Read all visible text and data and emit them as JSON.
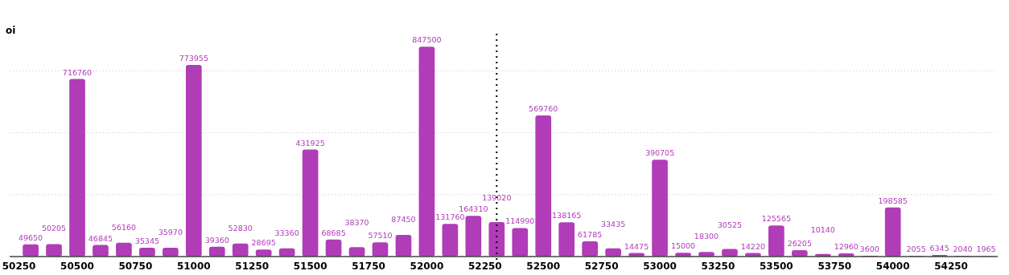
{
  "chart_data": {
    "type": "bar",
    "ylabel": "oi",
    "x": [
      50300,
      50400,
      50500,
      50600,
      50700,
      50800,
      50900,
      51000,
      51100,
      51200,
      51300,
      51400,
      51500,
      51600,
      51700,
      51800,
      51900,
      52000,
      52100,
      52200,
      52300,
      52400,
      52500,
      52600,
      52700,
      52800,
      52900,
      53000,
      53100,
      53200,
      53300,
      53400,
      53500,
      53600,
      53700,
      53800,
      53900,
      54000,
      54100,
      54200,
      54300,
      54400
    ],
    "values": [
      49650,
      50205,
      716760,
      46845,
      56160,
      35345,
      35970,
      773955,
      39360,
      52830,
      28695,
      33360,
      431925,
      68685,
      38370,
      57510,
      87450,
      847500,
      131760,
      164310,
      139020,
      114990,
      569760,
      138165,
      61785,
      33435,
      14475,
      390705,
      15000,
      18300,
      30525,
      14220,
      125565,
      26205,
      10140,
      12960,
      3600,
      198585,
      2055,
      6345,
      2040,
      1965
    ],
    "color": "#b03cb8",
    "data_labels": true,
    "xlim": [
      50210,
      54450
    ],
    "xticks": [
      50250,
      50500,
      50750,
      51000,
      51250,
      51500,
      51750,
      52000,
      52250,
      52500,
      52750,
      53000,
      53250,
      53500,
      53750,
      54000,
      54250
    ],
    "ylim": [
      0,
      900000
    ],
    "yticks": [
      {
        "value": 250000,
        "label": null
      },
      {
        "value": 500000,
        "label": null
      },
      {
        "value": 750000,
        "label": null
      }
    ],
    "grid": "y",
    "tick_labels": "x",
    "ref_lines": [
      {
        "axis": "x",
        "value": 52300,
        "line_style": "dotted",
        "color": "#000000"
      }
    ]
  }
}
